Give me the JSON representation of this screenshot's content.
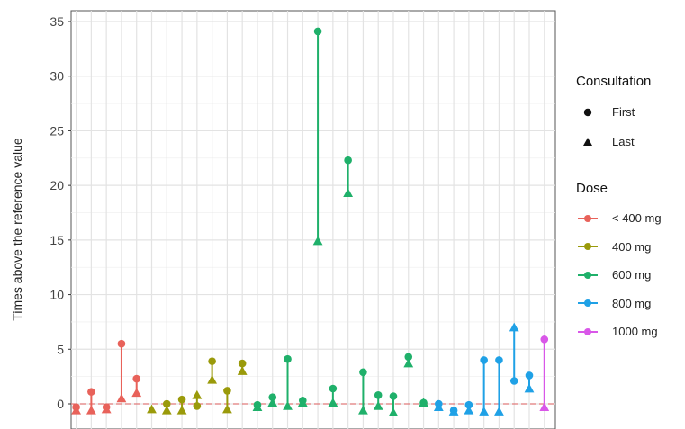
{
  "chart_data": {
    "type": "dumbbell",
    "ylabel": "Times above the reference value",
    "xlabel": "",
    "ylim": [
      -1.5,
      35.5
    ],
    "yticks": [
      0,
      5,
      10,
      15,
      20,
      25,
      30,
      35
    ],
    "reference_line": 0,
    "reference_color": "#e06060",
    "grid": true,
    "legend_placement": "right",
    "consultation_legend": {
      "title": "Consultation",
      "items": [
        {
          "label": "First",
          "shape": "circle"
        },
        {
          "label": "Last",
          "shape": "triangle"
        }
      ]
    },
    "dose_legend": {
      "title": "Dose",
      "items": [
        {
          "label": "< 400 mg",
          "color": "#e8625a"
        },
        {
          "label": "400 mg",
          "color": "#9a9a0a"
        },
        {
          "label": "600 mg",
          "color": "#1fb06a"
        },
        {
          "label": "800 mg",
          "color": "#1fa1e6"
        },
        {
          "label": "1000 mg",
          "color": "#d957e8"
        }
      ]
    },
    "patients": [
      {
        "dose": "< 400 mg",
        "first": -0.3,
        "last": -0.6
      },
      {
        "dose": "< 400 mg",
        "first": 1.1,
        "last": -0.6
      },
      {
        "dose": "< 400 mg",
        "first": -0.3,
        "last": -0.5
      },
      {
        "dose": "< 400 mg",
        "first": 5.5,
        "last": 0.5
      },
      {
        "dose": "< 400 mg",
        "first": 2.3,
        "last": 1.0
      },
      {
        "dose": "400 mg",
        "first": null,
        "last": -0.5
      },
      {
        "dose": "400 mg",
        "first": 0.0,
        "last": -0.6
      },
      {
        "dose": "400 mg",
        "first": 0.4,
        "last": -0.6
      },
      {
        "dose": "400 mg",
        "first": -0.2,
        "last": 0.8
      },
      {
        "dose": "400 mg",
        "first": 3.9,
        "last": 2.2
      },
      {
        "dose": "400 mg",
        "first": 1.2,
        "last": -0.5
      },
      {
        "dose": "400 mg",
        "first": 3.7,
        "last": 3.0
      },
      {
        "dose": "600 mg",
        "first": -0.1,
        "last": -0.3
      },
      {
        "dose": "600 mg",
        "first": 0.6,
        "last": 0.1
      },
      {
        "dose": "600 mg",
        "first": 4.1,
        "last": -0.2
      },
      {
        "dose": "600 mg",
        "first": 0.3,
        "last": 0.1
      },
      {
        "dose": "600 mg",
        "first": 34.1,
        "last": 14.9
      },
      {
        "dose": "600 mg",
        "first": 1.4,
        "last": 0.1
      },
      {
        "dose": "600 mg",
        "first": 22.3,
        "last": 19.3
      },
      {
        "dose": "600 mg",
        "first": 2.9,
        "last": -0.6
      },
      {
        "dose": "600 mg",
        "first": 0.8,
        "last": -0.2
      },
      {
        "dose": "600 mg",
        "first": 0.7,
        "last": -0.8
      },
      {
        "dose": "600 mg",
        "first": 4.3,
        "last": 3.7
      },
      {
        "dose": "600 mg",
        "first": 0.1,
        "last": 0.1
      },
      {
        "dose": "800 mg",
        "first": 0.0,
        "last": -0.3
      },
      {
        "dose": "800 mg",
        "first": -0.6,
        "last": -0.7
      },
      {
        "dose": "800 mg",
        "first": -0.1,
        "last": -0.6
      },
      {
        "dose": "800 mg",
        "first": 4.0,
        "last": -0.7
      },
      {
        "dose": "800 mg",
        "first": 4.0,
        "last": -0.7
      },
      {
        "dose": "800 mg",
        "first": 2.1,
        "last": 7.0
      },
      {
        "dose": "800 mg",
        "first": 2.6,
        "last": 1.4
      },
      {
        "dose": "1000 mg",
        "first": 5.9,
        "last": -0.3
      }
    ]
  }
}
